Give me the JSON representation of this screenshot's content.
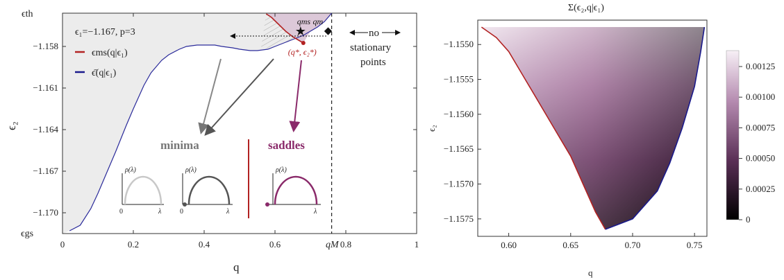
{
  "chart_data": [
    {
      "type": "line",
      "panel": "left",
      "xlabel": "q",
      "ylabel": "ϵ₂",
      "xlim": [
        0,
        1
      ],
      "ylim": [
        -1.1715,
        -1.1556
      ],
      "x_ticks": [
        "0",
        "0.2",
        "0.4",
        "0.6",
        "0.8",
        "1"
      ],
      "x_tick_values": [
        0,
        0.2,
        0.4,
        0.6,
        0.8,
        1
      ],
      "y_ticks": [
        "−1.158",
        "−1.161",
        "−1.164",
        "−1.167",
        "−1.170"
      ],
      "y_tick_values": [
        -1.158,
        -1.161,
        -1.164,
        -1.167,
        -1.17
      ],
      "y_top_label": "ϵth",
      "y_top_value": -1.1556,
      "y_bottom_label": "ϵgs",
      "y_bottom_value": -1.1715,
      "qM_label": "qM",
      "qM_value": 0.76,
      "info_label": "ϵ₁=−1.167, p=3",
      "legend": [
        {
          "label": "ϵms(q|ϵ₁)",
          "color": "#b22222"
        },
        {
          "label": "ϵ̄(q|ϵ₁)",
          "color": "#1a1a8c"
        }
      ],
      "series": [
        {
          "name": "ϵ̄(q|ϵ₁)",
          "color": "#2a2a9a",
          "x": [
            0.02,
            0.05,
            0.08,
            0.1,
            0.12,
            0.15,
            0.18,
            0.2,
            0.23,
            0.25,
            0.28,
            0.3,
            0.33,
            0.35,
            0.38,
            0.4,
            0.43,
            0.45,
            0.48,
            0.5,
            0.53,
            0.55,
            0.58,
            0.6,
            0.62,
            0.64,
            0.66,
            0.68,
            0.7,
            0.72,
            0.74,
            0.75,
            0.76
          ],
          "y": [
            -1.1713,
            -1.1709,
            -1.1697,
            -1.1686,
            -1.1674,
            -1.1656,
            -1.1637,
            -1.1625,
            -1.1608,
            -1.1599,
            -1.159,
            -1.1586,
            -1.1582,
            -1.158,
            -1.1579,
            -1.1579,
            -1.1579,
            -1.158,
            -1.1581,
            -1.1582,
            -1.1583,
            -1.1583,
            -1.1582,
            -1.158,
            -1.1578,
            -1.1576,
            -1.1574,
            -1.1572,
            -1.1569,
            -1.1566,
            -1.1562,
            -1.1559,
            -1.1556
          ]
        },
        {
          "name": "ϵms(q|ϵ₁)",
          "color": "#b22222",
          "x": [
            0.575,
            0.59,
            0.61,
            0.63,
            0.65,
            0.67,
            0.68
          ],
          "y": [
            -1.15565,
            -1.1559,
            -1.1564,
            -1.1569,
            -1.1573,
            -1.1576,
            -1.15775
          ]
        }
      ],
      "markers": [
        {
          "label": "qms",
          "x": 0.67,
          "y": -1.1569
        },
        {
          "label": "qm",
          "x": 0.75,
          "y": -1.1569
        },
        {
          "label": "(q*, ϵ₂*)",
          "x": 0.68,
          "y": -1.15775
        }
      ],
      "region_labels": {
        "no_stationary": [
          "no",
          "stationary",
          "points"
        ],
        "minima": "minima",
        "saddles": "saddles"
      },
      "insets": [
        {
          "ylabel": "ρ(λ)",
          "xlabel": "λ",
          "origin": "0"
        },
        {
          "ylabel": "ρ(λ)",
          "xlabel": "λ",
          "origin": "0"
        },
        {
          "ylabel": "ρ(λ)",
          "xlabel": "λ",
          "origin": "0"
        }
      ]
    },
    {
      "type": "heatmap",
      "panel": "right",
      "title": "Σ(ϵ₂,q|ϵ₁)",
      "xlabel": "q",
      "ylabel": "ϵ₂",
      "xlim": [
        0.575,
        0.76
      ],
      "ylim": [
        -1.15775,
        -1.15465
      ],
      "x_ticks": [
        "0.60",
        "0.65",
        "0.70",
        "0.75"
      ],
      "x_tick_values": [
        0.6,
        0.65,
        0.7,
        0.75
      ],
      "y_ticks": [
        "−1.1550",
        "−1.1555",
        "−1.1560",
        "−1.1565",
        "−1.1570",
        "−1.1575"
      ],
      "y_tick_values": [
        -1.155,
        -1.1555,
        -1.156,
        -1.1565,
        -1.157,
        -1.1575
      ],
      "colorbar_ticks": [
        "0.00125",
        "0.00100",
        "0.00075",
        "0.00050",
        "0.00025",
        "0"
      ],
      "colorbar_values": [
        0.00125,
        0.001,
        0.00075,
        0.0005,
        0.00025,
        0
      ],
      "colorbar_range": [
        0,
        0.00138
      ],
      "left_boundary": {
        "color": "#b22222",
        "x": [
          0.578,
          0.59,
          0.6,
          0.61,
          0.62,
          0.63,
          0.64,
          0.65,
          0.66,
          0.67,
          0.678
        ],
        "y": [
          -1.15475,
          -1.1549,
          -1.1551,
          -1.1554,
          -1.1557,
          -1.156,
          -1.1563,
          -1.1566,
          -1.157,
          -1.1574,
          -1.15765
        ]
      },
      "right_boundary": {
        "color": "#1a1a8c",
        "x": [
          0.678,
          0.7,
          0.72,
          0.73,
          0.74,
          0.75,
          0.755,
          0.758
        ],
        "y": [
          -1.15765,
          -1.1575,
          -1.1571,
          -1.1567,
          -1.1562,
          -1.1556,
          -1.1551,
          -1.15475
        ]
      }
    }
  ]
}
